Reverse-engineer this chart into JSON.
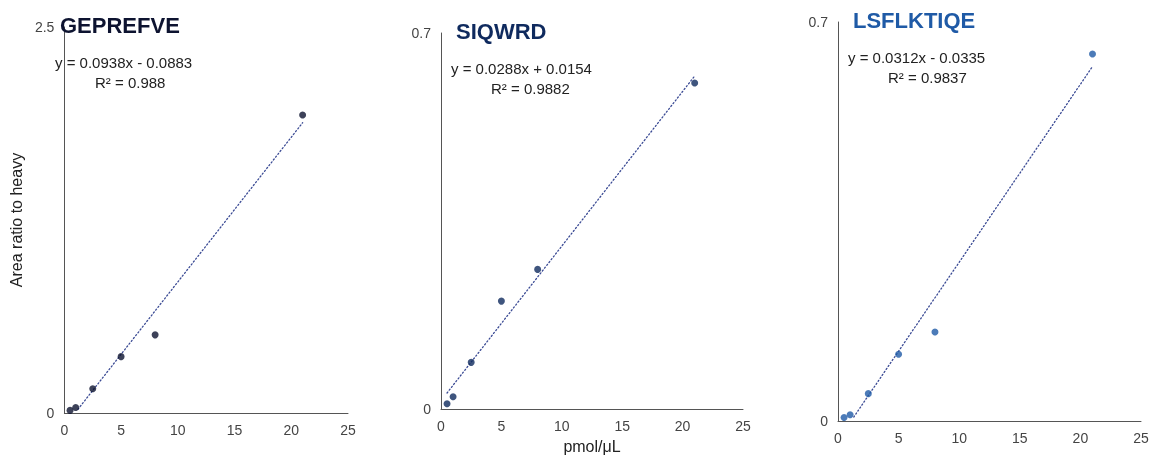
{
  "chart_data": [
    {
      "type": "scatter",
      "title": "GEPREFVE",
      "annotations": [
        "y = 0.0938x - 0.0883",
        "R² = 0.988"
      ],
      "ylabel": "Area ratio to heavy",
      "xlim": [
        0,
        25
      ],
      "xticks": [
        0,
        5,
        10,
        15,
        20,
        25
      ],
      "ylim": [
        0,
        2.5
      ],
      "yticks": [
        0,
        2.5
      ],
      "grid": false,
      "marker": "circle",
      "series": [
        {
          "color": "#0d1330",
          "x": [
            0.5,
            1,
            2.5,
            5,
            8,
            21
          ],
          "values": [
            0.017,
            0.036,
            0.157,
            0.365,
            0.506,
            1.93
          ]
        },
        {
          "type": "line",
          "color": "#3a4a94",
          "line_style": "dotted",
          "marker": "none",
          "x": [
            1.2,
            21
          ],
          "values": [
            0.024,
            1.88
          ]
        }
      ]
    },
    {
      "type": "scatter",
      "title": "SIQWRD",
      "annotations": [
        "y = 0.0288x + 0.0154",
        "R² = 0.9882"
      ],
      "xlabel": "pmol/μL",
      "xlim": [
        0,
        25
      ],
      "xticks": [
        0,
        5,
        10,
        15,
        20,
        25
      ],
      "ylim": [
        0,
        0.7
      ],
      "yticks": [
        0,
        0.7
      ],
      "grid": false,
      "marker": "circle",
      "series": [
        {
          "color": "#0f2a5e",
          "x": [
            0.5,
            1,
            2.5,
            5,
            8,
            21
          ],
          "values": [
            0.01,
            0.023,
            0.087,
            0.201,
            0.26,
            0.607
          ]
        },
        {
          "type": "line",
          "color": "#3a4a94",
          "line_style": "dotted",
          "marker": "none",
          "x": [
            0.5,
            21
          ],
          "values": [
            0.03,
            0.62
          ]
        }
      ]
    },
    {
      "type": "scatter",
      "title": "LSFLKTIQE",
      "annotations": [
        "y = 0.0312x - 0.0335",
        "R² = 0.9837"
      ],
      "xlim": [
        0,
        25
      ],
      "xticks": [
        0,
        5,
        10,
        15,
        20,
        25
      ],
      "ylim": [
        0,
        0.7
      ],
      "yticks": [
        0,
        0.7
      ],
      "grid": false,
      "marker": "circle",
      "series": [
        {
          "color": "#1f5aa6",
          "x": [
            0.5,
            1,
            2.5,
            5,
            8,
            21
          ],
          "values": [
            0.006,
            0.011,
            0.048,
            0.117,
            0.156,
            0.644
          ]
        },
        {
          "type": "line",
          "color": "#3a4a94",
          "line_style": "dotted",
          "marker": "none",
          "x": [
            1.3,
            21
          ],
          "values": [
            0.007,
            0.622
          ]
        }
      ]
    }
  ]
}
